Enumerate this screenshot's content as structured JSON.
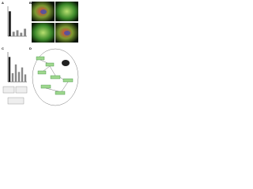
{
  "panels": [
    {
      "label": "A",
      "type": "bar",
      "values": [
        100,
        18,
        24,
        14,
        30
      ],
      "ylim": [
        0,
        120
      ]
    },
    {
      "label": "B"
    },
    {
      "label": "C",
      "type": "bar",
      "values": [
        100,
        35,
        70,
        40,
        58,
        30
      ],
      "ylim": [
        0,
        120
      ]
    },
    {
      "label": "D"
    }
  ]
}
